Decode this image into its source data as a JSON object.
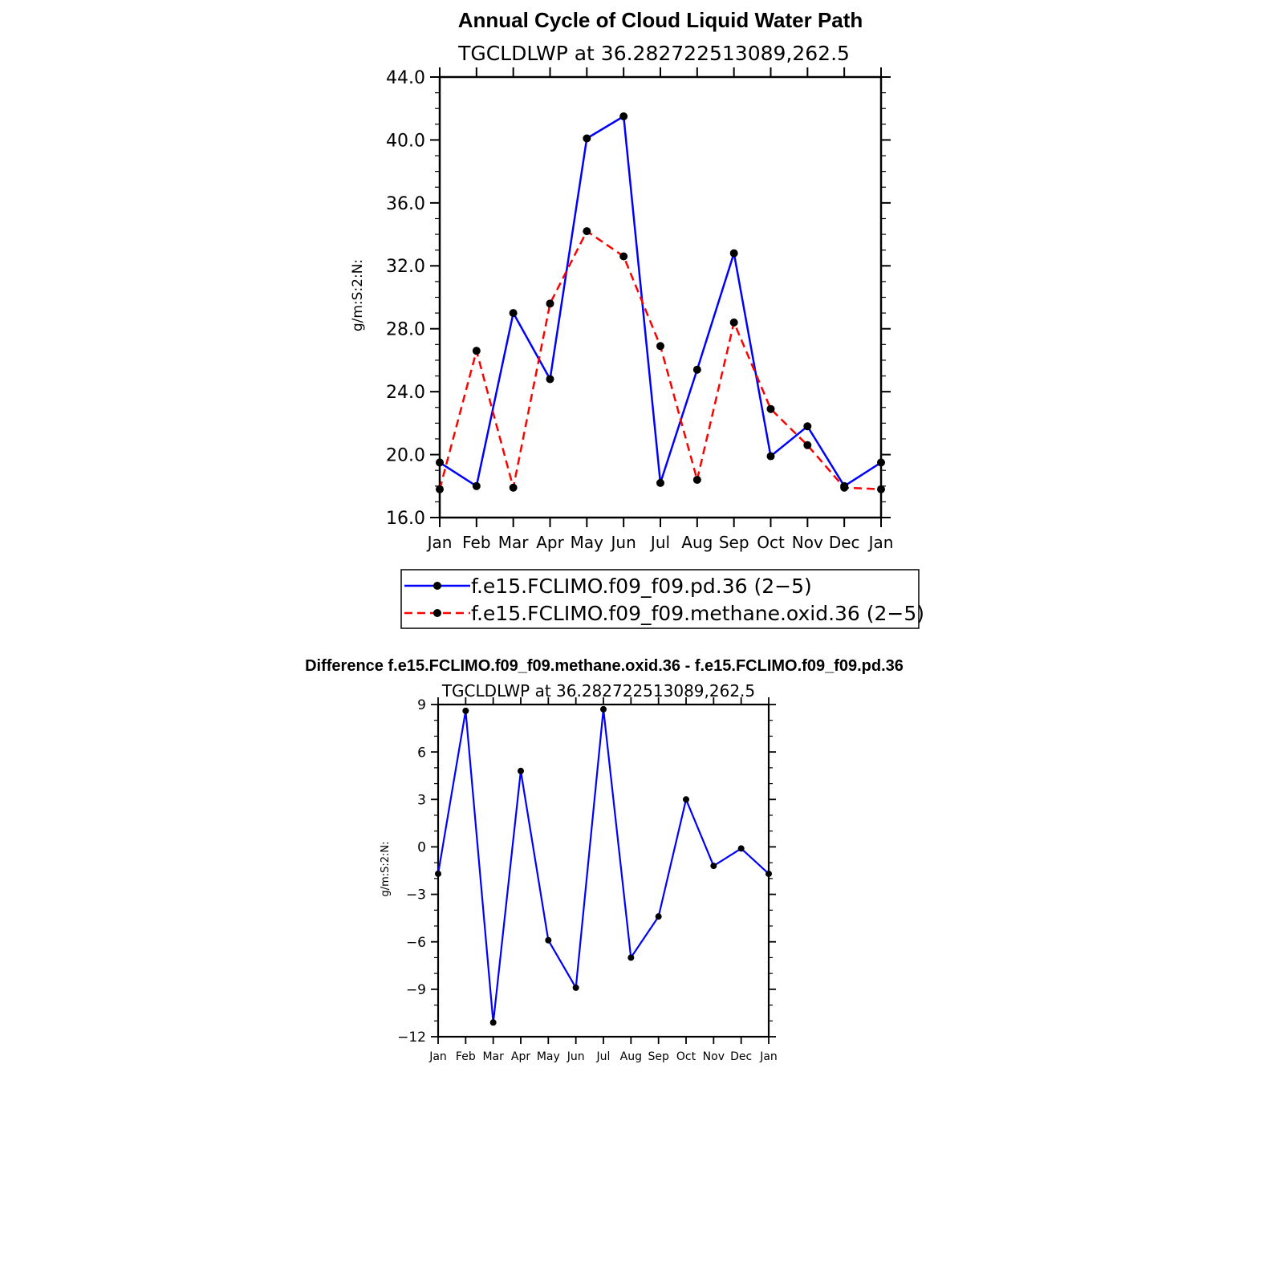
{
  "chart_data": [
    {
      "type": "line",
      "title": "Annual Cycle of Cloud Liquid Water Path",
      "subtitle": "TGCLDLWP  at  36.282722513089,262.5",
      "ylabel": "g/m:S:2:N:",
      "categories": [
        "Jan",
        "Feb",
        "Mar",
        "Apr",
        "May",
        "Jun",
        "Jul",
        "Aug",
        "Sep",
        "Oct",
        "Nov",
        "Dec",
        "Jan"
      ],
      "ylim": [
        16.0,
        44.0
      ],
      "yticks": [
        "16.0",
        "20.0",
        "24.0",
        "28.0",
        "32.0",
        "36.0",
        "40.0",
        "44.0"
      ],
      "series": [
        {
          "name": "f.e15.FCLIMO.f09_f09.pd.36 (2−5)",
          "color": "#0000ff",
          "dash": "solid",
          "values": [
            19.5,
            18.0,
            29.0,
            24.8,
            40.1,
            41.5,
            18.2,
            25.4,
            32.8,
            19.9,
            21.8,
            18.0,
            19.5
          ]
        },
        {
          "name": "f.e15.FCLIMO.f09_f09.methane.oxid.36 (2−5)",
          "color": "#ff0000",
          "dash": "dashed",
          "values": [
            17.8,
            26.6,
            17.9,
            29.6,
            34.2,
            32.6,
            26.9,
            18.4,
            28.4,
            22.9,
            20.6,
            17.9,
            17.8
          ]
        }
      ],
      "legend_position": "bottom"
    },
    {
      "type": "line",
      "title": "Difference f.e15.FCLIMO.f09_f09.methane.oxid.36 - f.e15.FCLIMO.f09_f09.pd.36",
      "subtitle": "TGCLDLWP  at  36.282722513089,262.5",
      "ylabel": "g/m:S:2:N:",
      "categories": [
        "Jan",
        "Feb",
        "Mar",
        "Apr",
        "May",
        "Jun",
        "Jul",
        "Aug",
        "Sep",
        "Oct",
        "Nov",
        "Dec",
        "Jan"
      ],
      "ylim": [
        -12,
        9
      ],
      "yticks": [
        "−12",
        "−9",
        "−6",
        "−3",
        "0",
        "3",
        "6",
        "9"
      ],
      "series": [
        {
          "color": "#0000ff",
          "dash": "solid",
          "values": [
            -1.7,
            8.6,
            -11.1,
            4.8,
            -5.9,
            -8.9,
            8.7,
            -7.0,
            -4.4,
            3.0,
            -1.2,
            -0.1,
            -1.7
          ]
        }
      ]
    }
  ]
}
